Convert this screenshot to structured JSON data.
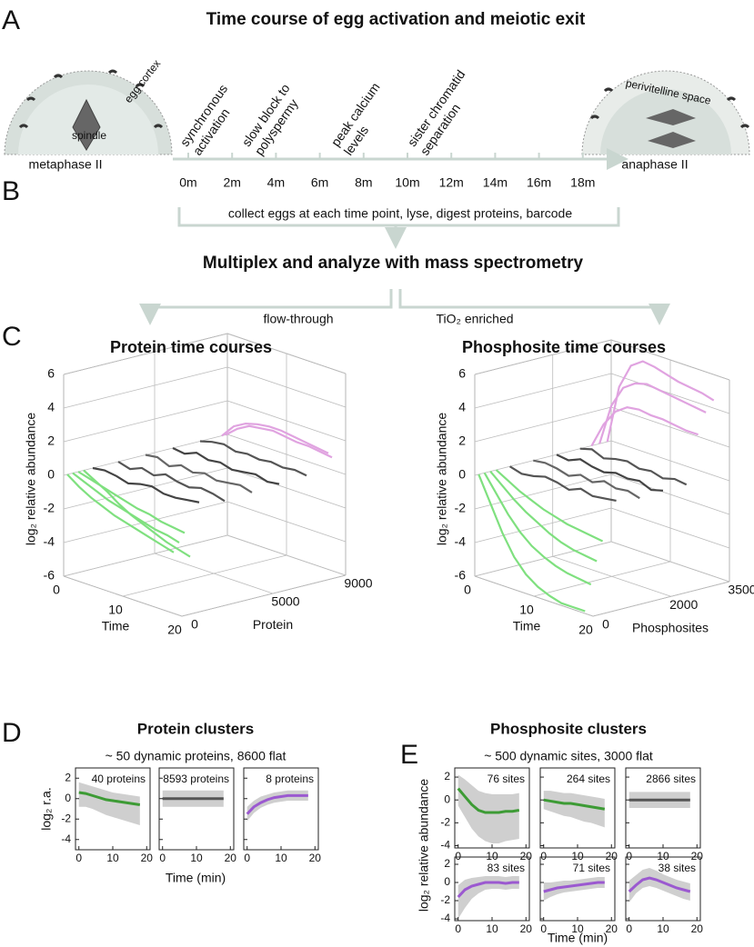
{
  "panel_a": {
    "label": "A",
    "title": "Time course of egg activation and meiotic exit",
    "left_egg": {
      "labels": [
        "egg cortex",
        "spindle"
      ],
      "caption": "metaphase II"
    },
    "right_egg": {
      "label": "perivitelline space",
      "caption": "anaphase II"
    },
    "events": [
      [
        "synchronous",
        "activation"
      ],
      [
        "slow block to",
        "polyspermy"
      ],
      [
        "peak calcium",
        "levels"
      ],
      [
        "sister chromatid",
        "separation"
      ]
    ],
    "timepoints": [
      "0m",
      "2m",
      "4m",
      "6m",
      "8m",
      "10m",
      "12m",
      "14m",
      "16m",
      "18m"
    ]
  },
  "panel_b": {
    "label": "B",
    "step": "collect eggs at each time point, lyse, digest proteins, barcode",
    "title": "Multiplex and analyze with mass spectrometry",
    "branches": [
      "flow-through",
      "TiO₂ enriched"
    ]
  },
  "panel_c": {
    "label": "C",
    "plots": [
      {
        "title": "Protein time courses",
        "ylabel": "log₂ relative abundance",
        "xlabel": "Time",
        "plabel": "Protein",
        "times": [
          0,
          2,
          4,
          6,
          8,
          10,
          12,
          14,
          16,
          18
        ],
        "tlim": [
          0,
          20
        ],
        "tticks": [
          0,
          10,
          20
        ],
        "plim": [
          0,
          9000
        ],
        "pticks": [
          0,
          5000,
          9000
        ],
        "zlim": [
          -6,
          6
        ],
        "zticks": [
          -6,
          -4,
          -2,
          0,
          2,
          4,
          6
        ],
        "traces": [
          {
            "position": 8700,
            "color": "#e0a3e0",
            "values": [
              0,
              0.8,
              1.2,
              1.4,
              1.5,
              1.5,
              1.4,
              1.3,
              1.2,
              1.1
            ]
          },
          {
            "position": 8900,
            "color": "#e0a3e0",
            "values": [
              0,
              0.6,
              1.0,
              1.1,
              1.2,
              1.1,
              1.0,
              1.0,
              0.9,
              0.8
            ]
          },
          {
            "position": 7500,
            "color": "#555555",
            "values": [
              0,
              0.2,
              0.3,
              0.1,
              0.2,
              0.1,
              0.2,
              0.1,
              0.2,
              0.1
            ]
          },
          {
            "position": 6000,
            "color": "#444444",
            "values": [
              0,
              -0.1,
              0.2,
              0,
              0.1,
              -0.1,
              0,
              0.1,
              -0.1,
              0
            ]
          },
          {
            "position": 4500,
            "color": "#666666",
            "values": [
              0,
              0.1,
              -0.2,
              0.1,
              -0.1,
              0.1,
              -0.1,
              0,
              0.1,
              -0.1
            ]
          },
          {
            "position": 3000,
            "color": "#555555",
            "values": [
              0,
              -0.2,
              0.1,
              -0.1,
              0.2,
              0,
              -0.1,
              0.1,
              0,
              -0.2
            ]
          },
          {
            "position": 1600,
            "color": "#444444",
            "values": [
              0,
              0.1,
              0,
              -0.2,
              0,
              0.1,
              -0.1,
              -0.1,
              0,
              0.1
            ]
          },
          {
            "position": 200,
            "color": "#7fe07f",
            "values": [
              0,
              -0.5,
              -0.9,
              -1.2,
              -1.5,
              -1.7,
              -1.9,
              -2.1,
              -2.3,
              -2.5
            ]
          },
          {
            "position": 500,
            "color": "#7fe07f",
            "values": [
              0,
              -0.3,
              -0.6,
              -0.9,
              -1.1,
              -1.3,
              -1.5,
              -1.7,
              -1.8,
              -2.0
            ]
          },
          {
            "position": 800,
            "color": "#7fe07f",
            "values": [
              0,
              -0.2,
              -0.4,
              -0.6,
              -0.8,
              -1.0,
              -1.1,
              -1.3,
              -1.4,
              -1.5
            ]
          },
          {
            "position": 1100,
            "color": "#7fe07f",
            "values": [
              0,
              -0.4,
              -0.8,
              -1.3,
              -1.7,
              -2.0,
              -2.3,
              -2.6,
              -2.8,
              -3.0
            ]
          }
        ]
      },
      {
        "title": "Phosphosite time courses",
        "ylabel": "log₂ relative abundance",
        "xlabel": "Time",
        "plabel": "Phosphosites",
        "times": [
          0,
          2,
          4,
          6,
          8,
          10,
          12,
          14,
          16,
          18
        ],
        "tlim": [
          0,
          20
        ],
        "tticks": [
          0,
          10,
          20
        ],
        "plim": [
          0,
          3500
        ],
        "pticks": [
          0,
          2000,
          3500
        ],
        "zlim": [
          -6,
          6
        ],
        "zticks": [
          -6,
          -4,
          -2,
          0,
          2,
          4,
          6
        ],
        "traces": [
          {
            "position": 3000,
            "color": "#e0a3e0",
            "values": [
              0,
              1.5,
              2.5,
              3.0,
              3.1,
              3.0,
              3.0,
              2.9,
              2.8,
              2.8
            ]
          },
          {
            "position": 3200,
            "color": "#e0a3e0",
            "values": [
              0,
              2.5,
              3.8,
              4.3,
              4.5,
              4.4,
              4.3,
              4.2,
              4.1,
              4.0
            ]
          },
          {
            "position": 3400,
            "color": "#e0a3e0",
            "values": [
              0,
              3.5,
              5.0,
              5.5,
              5.4,
              5.2,
              5.0,
              4.9,
              4.8,
              4.6
            ]
          },
          {
            "position": 2700,
            "color": "#555555",
            "values": [
              0,
              0.2,
              -0.1,
              0.1,
              0.2,
              0,
              0.1,
              -0.1,
              0.1,
              0
            ]
          },
          {
            "position": 2100,
            "color": "#444444",
            "values": [
              0,
              -0.1,
              0.2,
              0,
              -0.1,
              0.1,
              0,
              0.1,
              -0.2,
              0
            ]
          },
          {
            "position": 1500,
            "color": "#666666",
            "values": [
              0,
              0.1,
              0,
              -0.2,
              0.1,
              -0.1,
              0.2,
              0,
              0.1,
              -0.1
            ]
          },
          {
            "position": 900,
            "color": "#555555",
            "values": [
              0,
              -0.2,
              -0.1,
              0.1,
              0,
              -0.2,
              0.1,
              -0.1,
              0,
              0.1
            ]
          },
          {
            "position": 100,
            "color": "#7fe07f",
            "values": [
              0,
              -1.5,
              -3.0,
              -4.2,
              -5.0,
              -5.5,
              -5.8,
              -6.0,
              -6.0,
              -6.0
            ]
          },
          {
            "position": 250,
            "color": "#7fe07f",
            "values": [
              0,
              -1.0,
              -2.0,
              -2.8,
              -3.4,
              -3.8,
              -4.1,
              -4.3,
              -4.4,
              -4.5
            ]
          },
          {
            "position": 400,
            "color": "#7fe07f",
            "values": [
              0,
              -0.6,
              -1.2,
              -1.7,
              -2.1,
              -2.5,
              -2.8,
              -3.0,
              -3.1,
              -3.2
            ]
          },
          {
            "position": 550,
            "color": "#7fe07f",
            "values": [
              0,
              -0.4,
              -0.8,
              -1.1,
              -1.4,
              -1.6,
              -1.8,
              -1.9,
              -2.0,
              -2.1
            ]
          }
        ]
      }
    ]
  },
  "panel_d": {
    "label": "D",
    "title": "Protein clusters",
    "subtitle": "~ 50 dynamic proteins, 8600 flat",
    "ylabel": "log₂ r.a.",
    "xlabel": "Time (min)",
    "x": [
      0,
      2,
      4,
      6,
      8,
      10,
      12,
      14,
      16,
      18
    ],
    "xlim": [
      -1,
      21
    ],
    "ylim": [
      -5,
      3
    ],
    "xticks": [
      0,
      10,
      20
    ],
    "yticks": [
      2,
      0,
      -2,
      -4
    ],
    "clusters": [
      {
        "label": "40 proteins",
        "color": "#3d9b35",
        "values": [
          0.6,
          0.5,
          0.3,
          0.1,
          -0.1,
          -0.2,
          -0.3,
          -0.4,
          -0.5,
          -0.6
        ],
        "lower": [
          -0.8,
          -0.8,
          -1,
          -1.3,
          -1.6,
          -1.8,
          -2,
          -2.2,
          -2.4,
          -2.6
        ],
        "upper": [
          1.6,
          1.4,
          1.2,
          1,
          0.8,
          0.6,
          0.5,
          0.4,
          0.3,
          0.2
        ]
      },
      {
        "label": "8593 proteins",
        "color": "#555555",
        "values": [
          0,
          0,
          0,
          0,
          0,
          0,
          0,
          0,
          0,
          0
        ],
        "lower": [
          -0.8,
          -0.8,
          -0.8,
          -0.8,
          -0.8,
          -0.8,
          -0.8,
          -0.8,
          -0.8,
          -0.8
        ],
        "upper": [
          0.8,
          0.8,
          0.8,
          0.8,
          0.8,
          0.8,
          0.8,
          0.8,
          0.8,
          0.8
        ]
      },
      {
        "label": "8 proteins",
        "color": "#9b59d0",
        "values": [
          -1.5,
          -0.8,
          -0.4,
          -0.1,
          0.1,
          0.2,
          0.3,
          0.3,
          0.3,
          0.3
        ],
        "lower": [
          -2.2,
          -1.4,
          -0.9,
          -0.6,
          -0.4,
          -0.3,
          -0.2,
          -0.2,
          -0.2,
          -0.2
        ],
        "upper": [
          -0.8,
          -0.2,
          0.2,
          0.4,
          0.6,
          0.7,
          0.8,
          0.8,
          0.8,
          0.8
        ]
      }
    ]
  },
  "panel_e": {
    "label": "E",
    "title": "Phosphosite clusters",
    "subtitle": "~ 500 dynamic sites, 3000 flat",
    "ylabel": "log₂ relative abundance",
    "xlabel": "Time (min)",
    "x": [
      0,
      2,
      4,
      6,
      8,
      10,
      12,
      14,
      16,
      18
    ],
    "xlim": [
      -1,
      21
    ],
    "ylim": [
      -4.2,
      2.8
    ],
    "xticks": [
      0,
      10,
      20
    ],
    "yticks": [
      2,
      0,
      -2,
      -4
    ],
    "clusters": [
      {
        "label": "76 sites",
        "color": "#3d9b35",
        "values": [
          1,
          0.3,
          -0.4,
          -0.9,
          -1.1,
          -1.1,
          -1.1,
          -1,
          -1,
          -0.9
        ],
        "lower": [
          -0.5,
          -1.5,
          -2.5,
          -3.2,
          -3.6,
          -3.8,
          -3.8,
          -3.6,
          -3.5,
          -3.4
        ],
        "upper": [
          2.2,
          1.8,
          1.3,
          0.8,
          0.6,
          0.5,
          0.5,
          0.5,
          0.5,
          0.6
        ]
      },
      {
        "label": "264 sites",
        "color": "#3d9b35",
        "values": [
          0,
          -0.1,
          -0.2,
          -0.3,
          -0.3,
          -0.4,
          -0.5,
          -0.6,
          -0.7,
          -0.8
        ],
        "lower": [
          -0.8,
          -1,
          -1.2,
          -1.4,
          -1.5,
          -1.7,
          -1.9,
          -2,
          -2.2,
          -2.4
        ],
        "upper": [
          0.8,
          0.8,
          0.7,
          0.6,
          0.6,
          0.5,
          0.4,
          0.3,
          0.2,
          0.1
        ]
      },
      {
        "label": "2866 sites",
        "color": "#555555",
        "values": [
          0,
          0,
          0,
          0,
          0,
          0,
          0,
          0,
          0,
          0
        ],
        "lower": [
          -0.7,
          -0.7,
          -0.7,
          -0.7,
          -0.7,
          -0.7,
          -0.7,
          -0.7,
          -0.7,
          -0.7
        ],
        "upper": [
          0.7,
          0.7,
          0.7,
          0.7,
          0.7,
          0.7,
          0.7,
          0.7,
          0.7,
          0.7
        ]
      },
      {
        "label": "83 sites",
        "color": "#9b59d0",
        "values": [
          -1.6,
          -0.8,
          -0.4,
          -0.2,
          0,
          0,
          0,
          -0.1,
          0,
          0
        ],
        "lower": [
          -4,
          -2.8,
          -1.8,
          -1.2,
          -0.8,
          -0.7,
          -0.7,
          -0.8,
          -0.7,
          -0.7
        ],
        "upper": [
          -0.3,
          0.3,
          0.5,
          0.6,
          0.7,
          0.7,
          0.7,
          0.6,
          0.7,
          0.7
        ]
      },
      {
        "label": "71 sites",
        "color": "#9b59d0",
        "values": [
          -1,
          -0.8,
          -0.6,
          -0.5,
          -0.4,
          -0.3,
          -0.2,
          -0.1,
          0,
          0
        ],
        "lower": [
          -2,
          -1.6,
          -1.3,
          -1.1,
          -1,
          -0.9,
          -0.8,
          -0.7,
          -0.6,
          -0.6
        ],
        "upper": [
          0,
          0,
          0.1,
          0.2,
          0.2,
          0.3,
          0.4,
          0.5,
          0.6,
          0.6
        ]
      },
      {
        "label": "38 sites",
        "color": "#9b59d0",
        "values": [
          -1,
          -0.3,
          0.3,
          0.5,
          0.3,
          0,
          -0.3,
          -0.6,
          -0.8,
          -1
        ],
        "lower": [
          -2.2,
          -1.2,
          -0.6,
          -0.4,
          -0.6,
          -0.9,
          -1.2,
          -1.5,
          -1.8,
          -2
        ],
        "upper": [
          0.2,
          0.8,
          1.4,
          1.6,
          1.3,
          0.9,
          0.6,
          0.3,
          0.1,
          -0.1
        ]
      }
    ]
  }
}
